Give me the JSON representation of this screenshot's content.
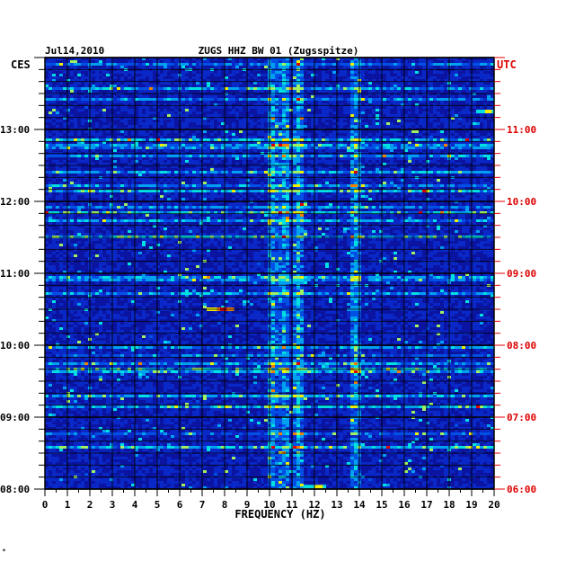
{
  "header": {
    "date": "Jul14,2010",
    "station": "ZUGS HHZ BW 01 (Zugsspitze)",
    "left_tz": "CES",
    "right_tz": "UTC"
  },
  "footer": {
    "corner_mark": "*"
  },
  "colors": {
    "background": "#0a1a9e",
    "grid": "#000000",
    "utc_labels": "#e00000",
    "labels": "#000000",
    "palette": [
      "#000078",
      "#0a14a0",
      "#0a28c8",
      "#0050e6",
      "#00a0f0",
      "#00e0e0",
      "#a0f060",
      "#f0f000",
      "#f08000",
      "#e00000"
    ]
  },
  "chart_data": {
    "type": "heatmap",
    "title": "ZUGS HHZ BW 01 (Zugsspitze)",
    "date": "Jul14,2010",
    "xlabel": "FREQUENCY (HZ)",
    "xlim": [
      0,
      20
    ],
    "x_ticks": [
      "0",
      "1",
      "2",
      "3",
      "4",
      "5",
      "6",
      "7",
      "8",
      "9",
      "10",
      "11",
      "12",
      "13",
      "14",
      "15",
      "16",
      "17",
      "18",
      "19",
      "20"
    ],
    "y_left_ticks": [
      "08:00",
      "09:00",
      "10:00",
      "11:00",
      "12:00",
      "13:00"
    ],
    "y_right_ticks": [
      "06:00",
      "07:00",
      "08:00",
      "09:00",
      "10:00",
      "11:00"
    ],
    "y_left_unit": "CES",
    "y_right_unit": "UTC",
    "grid": true,
    "dominant_bands_hz": [
      10.1,
      10.7,
      11.3,
      13.8
    ],
    "notable_events": [
      {
        "time_cest": "10:30",
        "freq_hz": [
          7.2,
          8.4
        ],
        "intensity": "high"
      },
      {
        "time_cest": "08:02",
        "freq_hz": [
          11.5,
          12.5
        ],
        "intensity": "medium"
      },
      {
        "time_cest": "13:15",
        "freq_hz": [
          19.2,
          20.0
        ],
        "intensity": "medium"
      }
    ]
  }
}
